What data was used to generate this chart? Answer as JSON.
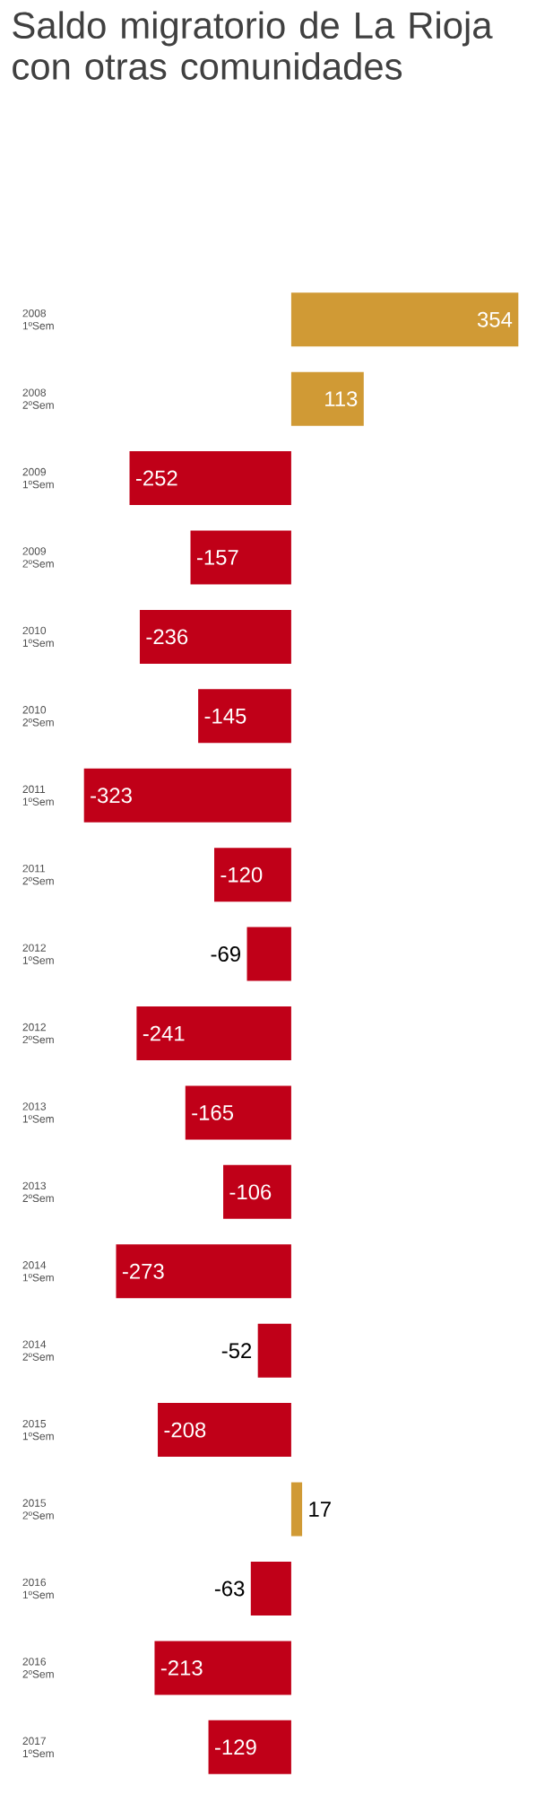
{
  "chart_data": {
    "type": "bar",
    "orientation": "horizontal",
    "title": "Saldo migratorio de La Rioja con otras comunidades",
    "categories": [
      "2008 1ºSem",
      "2008 2ºSem",
      "2009 1ºSem",
      "2009 2ºSem",
      "2010 1ºSem",
      "2010 2ºSem",
      "2011 1ºSem",
      "2011 2ºSem",
      "2012 1ºSem",
      "2012 2ºSem",
      "2013 1ºSem",
      "2013 2ºSem",
      "2014 1ºSem",
      "2014 2ºSem",
      "2015 1ºSem",
      "2015 2ºSem",
      "2016 1ºSem",
      "2016 2ºSem",
      "2017 1ºSem"
    ],
    "values": [
      354,
      113,
      -252,
      -157,
      -236,
      -145,
      -323,
      -120,
      -69,
      -241,
      -165,
      -106,
      -273,
      -52,
      -208,
      17,
      -63,
      -213,
      -129
    ],
    "value_labels": [
      "354",
      "113",
      "-252",
      "-157",
      "-236",
      "-145",
      "-323",
      "-120",
      "-69",
      "-241",
      "-165",
      "-106",
      "-273",
      "-52",
      "-208",
      "17",
      "-63",
      "-213",
      "-129"
    ],
    "colors": [
      "#d09a35",
      "#d09a35",
      "#c00018",
      "#c00018",
      "#c00018",
      "#c00018",
      "#c00018",
      "#c00018",
      "#c00018",
      "#c00018",
      "#c00018",
      "#c00018",
      "#c00018",
      "#c00018",
      "#c00018",
      "#d09a35",
      "#c00018",
      "#c00018",
      "#c00018"
    ]
  }
}
